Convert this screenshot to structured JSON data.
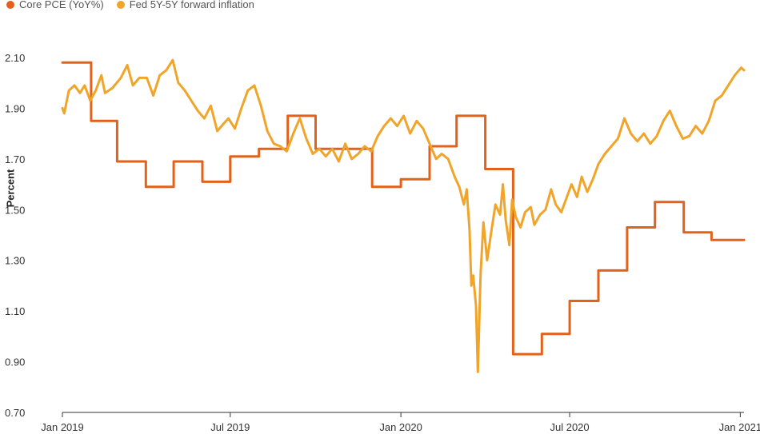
{
  "chart_data": {
    "type": "line",
    "title": "",
    "xlabel": "",
    "ylabel": "Percent",
    "ylim": [
      0.7,
      2.1
    ],
    "yticks": [
      "2.10",
      "1.90",
      "1.70",
      "1.50",
      "1.30",
      "1.10",
      "0.90",
      "0.70"
    ],
    "xlim": [
      "2019-01-01",
      "2021-01-05"
    ],
    "xticks": [
      {
        "date": "2019-01-01",
        "label": "Jan 2019"
      },
      {
        "date": "2019-07-01",
        "label": "Jul 2019"
      },
      {
        "date": "2020-01-01",
        "label": "Jan 2020"
      },
      {
        "date": "2020-07-01",
        "label": "Jul 2020"
      },
      {
        "date": "2021-01-01",
        "label": "Jan 2021"
      }
    ],
    "legend_position": "top-left",
    "grid": false,
    "series": [
      {
        "name": "Core PCE (YoY%)",
        "color": "#e2621b",
        "style": "step",
        "points": [
          [
            "2019-01-01",
            2.08
          ],
          [
            "2019-02-01",
            1.85
          ],
          [
            "2019-03-01",
            1.69
          ],
          [
            "2019-04-01",
            1.59
          ],
          [
            "2019-05-01",
            1.69
          ],
          [
            "2019-06-01",
            1.61
          ],
          [
            "2019-07-01",
            1.71
          ],
          [
            "2019-08-01",
            1.74
          ],
          [
            "2019-09-01",
            1.87
          ],
          [
            "2019-10-01",
            1.74
          ],
          [
            "2019-11-01",
            1.74
          ],
          [
            "2019-12-01",
            1.59
          ],
          [
            "2020-01-01",
            1.62
          ],
          [
            "2020-02-01",
            1.75
          ],
          [
            "2020-03-01",
            1.87
          ],
          [
            "2020-04-01",
            1.66
          ],
          [
            "2020-05-01",
            0.93
          ],
          [
            "2020-06-01",
            1.01
          ],
          [
            "2020-07-01",
            1.14
          ],
          [
            "2020-08-01",
            1.26
          ],
          [
            "2020-09-01",
            1.43
          ],
          [
            "2020-10-01",
            1.53
          ],
          [
            "2020-11-01",
            1.41
          ],
          [
            "2020-12-01",
            1.38
          ],
          [
            "2021-01-05",
            1.38
          ]
        ]
      },
      {
        "name": "Fed 5Y-5Y forward inflation",
        "color": "#f0a52a",
        "style": "line",
        "points": [
          [
            "2019-01-01",
            1.9
          ],
          [
            "2019-01-03",
            1.88
          ],
          [
            "2019-01-08",
            1.97
          ],
          [
            "2019-01-14",
            1.99
          ],
          [
            "2019-01-20",
            1.96
          ],
          [
            "2019-01-25",
            1.99
          ],
          [
            "2019-01-31",
            1.93
          ],
          [
            "2019-02-06",
            1.97
          ],
          [
            "2019-02-12",
            2.03
          ],
          [
            "2019-02-16",
            1.96
          ],
          [
            "2019-02-24",
            1.98
          ],
          [
            "2019-03-05",
            2.02
          ],
          [
            "2019-03-12",
            2.07
          ],
          [
            "2019-03-18",
            1.99
          ],
          [
            "2019-03-25",
            2.02
          ],
          [
            "2019-04-02",
            2.02
          ],
          [
            "2019-04-09",
            1.95
          ],
          [
            "2019-04-16",
            2.03
          ],
          [
            "2019-04-23",
            2.05
          ],
          [
            "2019-04-30",
            2.09
          ],
          [
            "2019-05-06",
            2.0
          ],
          [
            "2019-05-13",
            1.97
          ],
          [
            "2019-05-20",
            1.93
          ],
          [
            "2019-05-27",
            1.89
          ],
          [
            "2019-06-03",
            1.86
          ],
          [
            "2019-06-10",
            1.91
          ],
          [
            "2019-06-17",
            1.81
          ],
          [
            "2019-06-24",
            1.84
          ],
          [
            "2019-06-29",
            1.86
          ],
          [
            "2019-07-06",
            1.82
          ],
          [
            "2019-07-13",
            1.9
          ],
          [
            "2019-07-20",
            1.97
          ],
          [
            "2019-07-27",
            1.99
          ],
          [
            "2019-08-03",
            1.91
          ],
          [
            "2019-08-10",
            1.81
          ],
          [
            "2019-08-17",
            1.76
          ],
          [
            "2019-08-24",
            1.75
          ],
          [
            "2019-08-31",
            1.73
          ],
          [
            "2019-09-07",
            1.8
          ],
          [
            "2019-09-14",
            1.86
          ],
          [
            "2019-09-21",
            1.78
          ],
          [
            "2019-09-28",
            1.72
          ],
          [
            "2019-10-05",
            1.74
          ],
          [
            "2019-10-12",
            1.71
          ],
          [
            "2019-10-19",
            1.74
          ],
          [
            "2019-10-26",
            1.69
          ],
          [
            "2019-11-02",
            1.76
          ],
          [
            "2019-11-09",
            1.7
          ],
          [
            "2019-11-16",
            1.72
          ],
          [
            "2019-11-23",
            1.75
          ],
          [
            "2019-11-30",
            1.73
          ],
          [
            "2019-12-07",
            1.79
          ],
          [
            "2019-12-14",
            1.83
          ],
          [
            "2019-12-21",
            1.86
          ],
          [
            "2019-12-28",
            1.83
          ],
          [
            "2020-01-04",
            1.87
          ],
          [
            "2020-01-11",
            1.8
          ],
          [
            "2020-01-18",
            1.85
          ],
          [
            "2020-01-25",
            1.82
          ],
          [
            "2020-02-01",
            1.76
          ],
          [
            "2020-02-08",
            1.7
          ],
          [
            "2020-02-14",
            1.72
          ],
          [
            "2020-02-21",
            1.7
          ],
          [
            "2020-02-28",
            1.63
          ],
          [
            "2020-03-04",
            1.59
          ],
          [
            "2020-03-09",
            1.52
          ],
          [
            "2020-03-12",
            1.58
          ],
          [
            "2020-03-15",
            1.42
          ],
          [
            "2020-03-17",
            1.2
          ],
          [
            "2020-03-19",
            1.24
          ],
          [
            "2020-03-22",
            1.12
          ],
          [
            "2020-03-24",
            0.86
          ],
          [
            "2020-03-27",
            1.25
          ],
          [
            "2020-03-30",
            1.45
          ],
          [
            "2020-04-03",
            1.3
          ],
          [
            "2020-04-07",
            1.4
          ],
          [
            "2020-04-12",
            1.52
          ],
          [
            "2020-04-17",
            1.48
          ],
          [
            "2020-04-20",
            1.6
          ],
          [
            "2020-04-23",
            1.46
          ],
          [
            "2020-04-27",
            1.36
          ],
          [
            "2020-04-30",
            1.54
          ],
          [
            "2020-05-04",
            1.47
          ],
          [
            "2020-05-09",
            1.43
          ],
          [
            "2020-05-14",
            1.49
          ],
          [
            "2020-05-20",
            1.51
          ],
          [
            "2020-05-24",
            1.44
          ],
          [
            "2020-05-30",
            1.48
          ],
          [
            "2020-06-05",
            1.5
          ],
          [
            "2020-06-11",
            1.58
          ],
          [
            "2020-06-16",
            1.52
          ],
          [
            "2020-06-22",
            1.49
          ],
          [
            "2020-06-28",
            1.55
          ],
          [
            "2020-07-03",
            1.6
          ],
          [
            "2020-07-09",
            1.55
          ],
          [
            "2020-07-14",
            1.63
          ],
          [
            "2020-07-20",
            1.57
          ],
          [
            "2020-07-26",
            1.62
          ],
          [
            "2020-08-01",
            1.68
          ],
          [
            "2020-08-08",
            1.72
          ],
          [
            "2020-08-15",
            1.75
          ],
          [
            "2020-08-22",
            1.78
          ],
          [
            "2020-08-29",
            1.86
          ],
          [
            "2020-09-05",
            1.8
          ],
          [
            "2020-09-12",
            1.77
          ],
          [
            "2020-09-19",
            1.8
          ],
          [
            "2020-09-26",
            1.76
          ],
          [
            "2020-10-03",
            1.79
          ],
          [
            "2020-10-10",
            1.85
          ],
          [
            "2020-10-17",
            1.89
          ],
          [
            "2020-10-24",
            1.83
          ],
          [
            "2020-10-31",
            1.78
          ],
          [
            "2020-11-07",
            1.79
          ],
          [
            "2020-11-14",
            1.83
          ],
          [
            "2020-11-21",
            1.8
          ],
          [
            "2020-11-28",
            1.85
          ],
          [
            "2020-12-05",
            1.93
          ],
          [
            "2020-12-12",
            1.95
          ],
          [
            "2020-12-19",
            1.99
          ],
          [
            "2020-12-26",
            2.03
          ],
          [
            "2021-01-02",
            2.06
          ],
          [
            "2021-01-05",
            2.05
          ]
        ]
      }
    ]
  }
}
